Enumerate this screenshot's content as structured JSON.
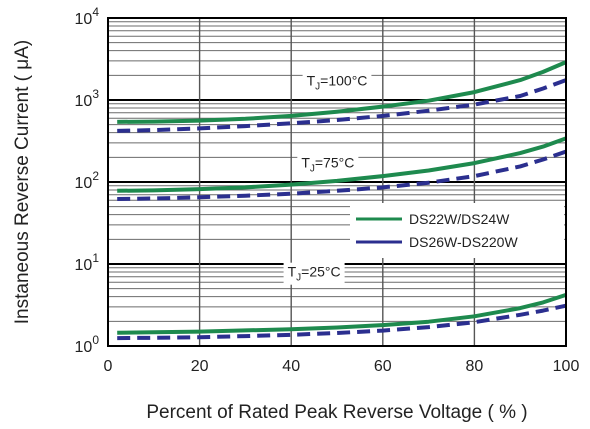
{
  "chart_data": {
    "type": "line",
    "xlabel": "Percent of Rated Peak Reverse Voltage ( % )",
    "ylabel": "Instaneous Reverse Current ( μA)",
    "xlim": [
      0,
      100
    ],
    "ylim": [
      1,
      10000
    ],
    "yscale": "log",
    "x_ticks": [
      "0",
      "20",
      "40",
      "60",
      "80",
      "100"
    ],
    "y_ticks": [
      {
        "base": "10",
        "exp": "0",
        "value": 1
      },
      {
        "base": "10",
        "exp": "1",
        "value": 10
      },
      {
        "base": "10",
        "exp": "2",
        "value": 100
      },
      {
        "base": "10",
        "exp": "3",
        "value": 1000
      },
      {
        "base": "10",
        "exp": "4",
        "value": 10000
      }
    ],
    "grid": true,
    "legend_position": "center-right",
    "legend": [
      {
        "label": "DS22W/DS24W",
        "color": "#1e8a4e",
        "dash": "solid"
      },
      {
        "label": "DS26W-DS220W",
        "color": "#2b2f8f",
        "dash": "dashed"
      }
    ],
    "annotations": [
      {
        "id": "tj100",
        "prefix": "T",
        "sub": "J",
        "suffix": "=100°C",
        "x": 50,
        "y": 1500
      },
      {
        "id": "tj75",
        "prefix": "T",
        "sub": "J",
        "suffix": "=75°C",
        "x": 48,
        "y": 150
      },
      {
        "id": "tj25",
        "prefix": "T",
        "sub": "J",
        "suffix": "=25°C",
        "x": 45,
        "y": 7
      }
    ],
    "series": [
      {
        "group": "TJ=100°C",
        "style": "solid",
        "x": [
          2,
          10,
          20,
          30,
          40,
          50,
          60,
          70,
          80,
          90,
          95,
          100
        ],
        "y": [
          540,
          545,
          560,
          590,
          640,
          720,
          830,
          980,
          1250,
          1750,
          2200,
          2900
        ]
      },
      {
        "group": "TJ=100°C",
        "style": "dashed",
        "x": [
          2,
          10,
          20,
          30,
          40,
          50,
          60,
          70,
          80,
          90,
          95,
          100
        ],
        "y": [
          420,
          430,
          450,
          480,
          520,
          570,
          640,
          740,
          880,
          1120,
          1380,
          1750
        ]
      },
      {
        "group": "TJ=75°C",
        "style": "solid",
        "x": [
          2,
          10,
          20,
          30,
          40,
          50,
          60,
          70,
          80,
          90,
          95,
          100
        ],
        "y": [
          78,
          79,
          82,
          86,
          93,
          103,
          118,
          138,
          170,
          225,
          270,
          340
        ]
      },
      {
        "group": "TJ=75°C",
        "style": "dashed",
        "x": [
          2,
          10,
          20,
          30,
          40,
          50,
          60,
          70,
          80,
          90,
          95,
          100
        ],
        "y": [
          62,
          63,
          65,
          68,
          72,
          78,
          86,
          98,
          118,
          155,
          188,
          235
        ]
      },
      {
        "group": "TJ=25°C",
        "style": "solid",
        "x": [
          2,
          10,
          20,
          30,
          40,
          50,
          60,
          70,
          80,
          90,
          95,
          100
        ],
        "y": [
          1.45,
          1.47,
          1.5,
          1.55,
          1.6,
          1.68,
          1.8,
          1.98,
          2.3,
          2.9,
          3.4,
          4.2
        ]
      },
      {
        "group": "TJ=25°C",
        "style": "dashed",
        "x": [
          2,
          10,
          20,
          30,
          40,
          50,
          60,
          70,
          80,
          90,
          95,
          100
        ],
        "y": [
          1.25,
          1.26,
          1.28,
          1.32,
          1.37,
          1.44,
          1.54,
          1.7,
          1.95,
          2.4,
          2.7,
          3.1
        ]
      }
    ]
  }
}
